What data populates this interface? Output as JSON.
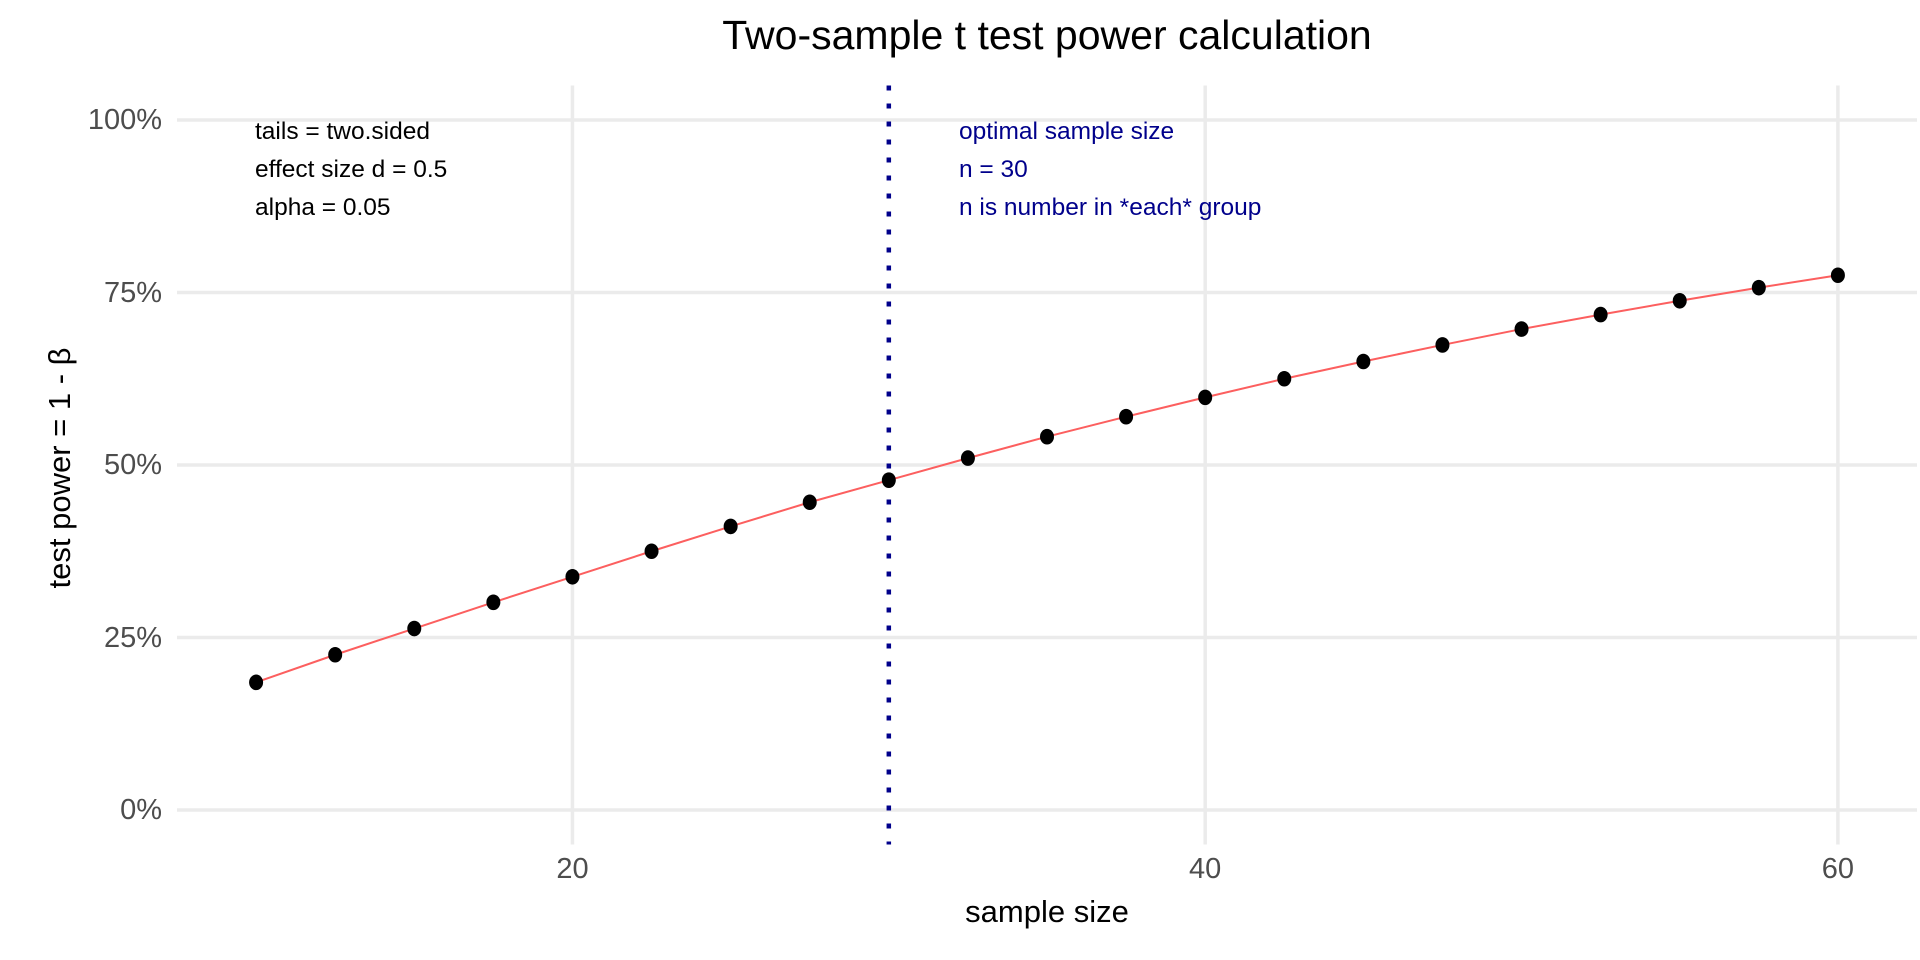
{
  "title": "Two-sample t test power calculation",
  "annotations": {
    "params": [
      "tails = two.sided",
      "effect size d = 0.5",
      "alpha = 0.05"
    ],
    "optimal": [
      "optimal sample size",
      "n = 30",
      "n is number in *each* group"
    ]
  },
  "colors": {
    "curve_line": "#fc5f5f",
    "point": "#000000",
    "vline": "#00008b",
    "annotation_blue": "#00008b",
    "gridline": "#ebebeb",
    "tick_label": "#4d4d4d",
    "background": "#ffffff"
  },
  "chart_data": {
    "type": "line",
    "title": "Two-sample t test power calculation",
    "xlabel": "sample size",
    "ylabel": "test power = 1 - β",
    "x": [
      10,
      12.5,
      15,
      17.5,
      20,
      22.5,
      25,
      27.5,
      30,
      32.5,
      35,
      37.5,
      40,
      42.5,
      45,
      47.5,
      50,
      52.5,
      55,
      57.5,
      60
    ],
    "y_percent": [
      18.5,
      22.5,
      26.3,
      30.1,
      33.8,
      37.5,
      41.1,
      44.6,
      47.8,
      51.0,
      54.1,
      57.0,
      59.8,
      62.5,
      65.0,
      67.4,
      69.7,
      71.8,
      73.8,
      75.7,
      77.5
    ],
    "x_tick_values": [
      20,
      40,
      60
    ],
    "x_tick_labels": [
      "20",
      "40",
      "60"
    ],
    "y_tick_values": [
      0,
      25,
      50,
      75,
      100
    ],
    "y_tick_labels": [
      "0%",
      "25%",
      "50%",
      "75%",
      "100%"
    ],
    "xlim": [
      7.5,
      62.5
    ],
    "ylim": [
      -5,
      105
    ],
    "vline_x": 30,
    "grid": "major-only",
    "legend": "none"
  }
}
